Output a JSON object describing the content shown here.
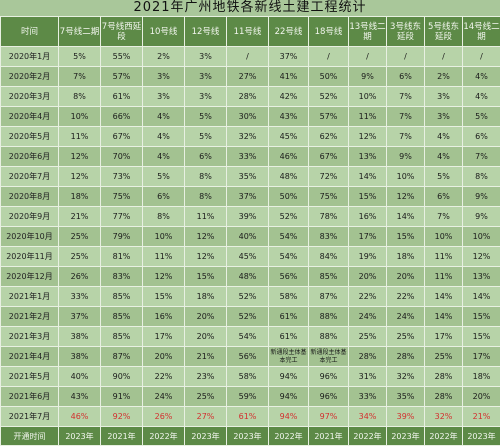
{
  "title": "2021年广州地铁各新线土建工程统计",
  "headers": [
    "时间",
    "7号线二期",
    "7号线西延段",
    "10号线",
    "12号线",
    "11号线",
    "22号线",
    "18号线",
    "13号线二期",
    "3号线东延段",
    "5号线东延段",
    "14号线二期"
  ],
  "rows": [
    {
      "month": "2020年1月",
      "values": [
        "5%",
        "55%",
        "2%",
        "3%",
        "/",
        "37%",
        "/",
        "/",
        "/",
        "/",
        "/"
      ]
    },
    {
      "month": "2020年2月",
      "values": [
        "7%",
        "57%",
        "3%",
        "3%",
        "27%",
        "41%",
        "50%",
        "9%",
        "6%",
        "2%",
        "4%"
      ]
    },
    {
      "month": "2020年3月",
      "values": [
        "8%",
        "61%",
        "3%",
        "3%",
        "28%",
        "42%",
        "52%",
        "10%",
        "7%",
        "3%",
        "4%"
      ]
    },
    {
      "month": "2020年4月",
      "values": [
        "10%",
        "66%",
        "4%",
        "5%",
        "30%",
        "43%",
        "57%",
        "11%",
        "7%",
        "3%",
        "5%"
      ]
    },
    {
      "month": "2020年5月",
      "values": [
        "11%",
        "67%",
        "4%",
        "5%",
        "32%",
        "45%",
        "62%",
        "12%",
        "7%",
        "4%",
        "6%"
      ]
    },
    {
      "month": "2020年6月",
      "values": [
        "12%",
        "70%",
        "4%",
        "6%",
        "33%",
        "46%",
        "67%",
        "13%",
        "9%",
        "4%",
        "7%"
      ]
    },
    {
      "month": "2020年7月",
      "values": [
        "12%",
        "73%",
        "5%",
        "8%",
        "35%",
        "48%",
        "72%",
        "14%",
        "10%",
        "5%",
        "8%"
      ]
    },
    {
      "month": "2020年8月",
      "values": [
        "18%",
        "75%",
        "6%",
        "8%",
        "37%",
        "50%",
        "75%",
        "15%",
        "12%",
        "6%",
        "9%"
      ]
    },
    {
      "month": "2020年9月",
      "values": [
        "21%",
        "77%",
        "8%",
        "11%",
        "39%",
        "52%",
        "78%",
        "16%",
        "14%",
        "7%",
        "9%"
      ]
    },
    {
      "month": "2020年10月",
      "values": [
        "25%",
        "79%",
        "10%",
        "12%",
        "40%",
        "54%",
        "83%",
        "17%",
        "15%",
        "10%",
        "10%"
      ]
    },
    {
      "month": "2020年11月",
      "values": [
        "25%",
        "81%",
        "11%",
        "12%",
        "45%",
        "54%",
        "84%",
        "19%",
        "18%",
        "11%",
        "12%"
      ]
    },
    {
      "month": "2020年12月",
      "values": [
        "26%",
        "83%",
        "12%",
        "15%",
        "48%",
        "56%",
        "85%",
        "20%",
        "20%",
        "11%",
        "13%"
      ]
    },
    {
      "month": "2021年1月",
      "values": [
        "33%",
        "85%",
        "15%",
        "18%",
        "52%",
        "58%",
        "87%",
        "22%",
        "22%",
        "14%",
        "14%"
      ]
    },
    {
      "month": "2021年2月",
      "values": [
        "37%",
        "85%",
        "16%",
        "20%",
        "52%",
        "61%",
        "88%",
        "24%",
        "24%",
        "14%",
        "15%"
      ]
    },
    {
      "month": "2021年3月",
      "values": [
        "38%",
        "85%",
        "17%",
        "20%",
        "54%",
        "61%",
        "88%",
        "25%",
        "25%",
        "17%",
        "15%"
      ]
    },
    {
      "month": "2021年4月",
      "values": [
        "38%",
        "87%",
        "20%",
        "21%",
        "56%",
        "新通段主体基本完工",
        "新通段主体基本完工",
        "28%",
        "28%",
        "25%",
        "17%"
      ]
    },
    {
      "month": "2021年5月",
      "values": [
        "40%",
        "90%",
        "22%",
        "23%",
        "58%",
        "94%",
        "96%",
        "31%",
        "32%",
        "28%",
        "18%"
      ]
    },
    {
      "month": "2021年6月",
      "values": [
        "43%",
        "91%",
        "24%",
        "25%",
        "59%",
        "94%",
        "96%",
        "33%",
        "35%",
        "28%",
        "20%"
      ]
    },
    {
      "month": "2021年7月",
      "values": [
        "46%",
        "92%",
        "26%",
        "27%",
        "61%",
        "94%",
        "97%",
        "34%",
        "39%",
        "32%",
        "21%"
      ]
    }
  ],
  "open_row": {
    "label": "开通时间",
    "values": [
      "2023年",
      "2021年",
      "2022年",
      "2023年",
      "2023年",
      "2022年",
      "2021年",
      "2022年",
      "2023年",
      "2022年",
      "2023年"
    ]
  },
  "colors": {
    "header": "#5d8a47",
    "highlight": "#d32f2f"
  }
}
